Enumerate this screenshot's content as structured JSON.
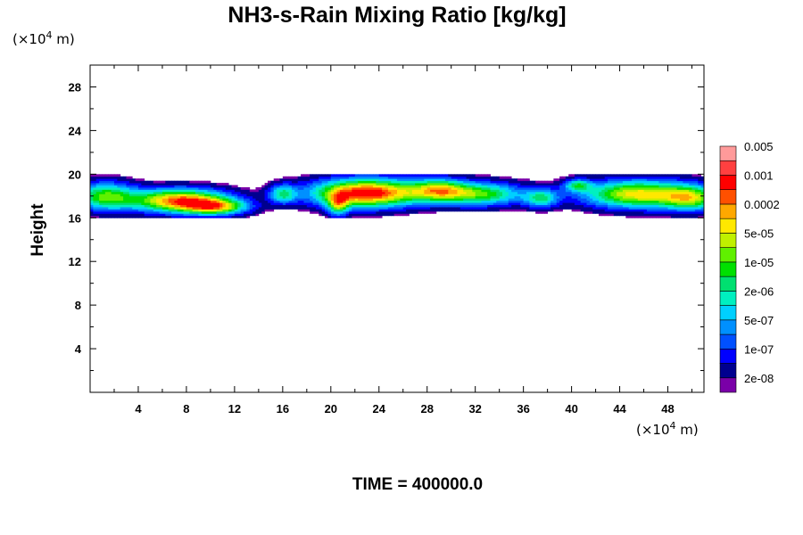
{
  "chart_data": {
    "type": "heatmap",
    "title": "NH3-s-Rain Mixing Ratio [kg/kg]",
    "x_unit": {
      "prefix": "(×10",
      "exp": "4",
      "suffix": " m)"
    },
    "y_unit": {
      "prefix": "(×10",
      "exp": "4",
      "suffix": " m)"
    },
    "ylabel": "Height",
    "xlim": [
      0,
      51
    ],
    "ylim": [
      0,
      30
    ],
    "x_ticks": [
      4,
      8,
      12,
      16,
      20,
      24,
      28,
      32,
      36,
      40,
      44,
      48
    ],
    "y_ticks": [
      4,
      8,
      12,
      16,
      20,
      24,
      28
    ],
    "footer": "TIME = 400000.0",
    "colorbar": {
      "colors": [
        "#7a00a8",
        "#00008f",
        "#0000ff",
        "#0050ff",
        "#0090ff",
        "#00d0ff",
        "#00f0c0",
        "#00e070",
        "#00e000",
        "#60f000",
        "#c0f000",
        "#ffe800",
        "#ffa800",
        "#ff5000",
        "#ff0000",
        "#ff4040",
        "#ff9a9a"
      ],
      "labels": [
        "2e-08",
        "1e-07",
        "5e-07",
        "2e-06",
        "1e-05",
        "5e-05",
        "0.0002",
        "0.001",
        "0.005"
      ]
    },
    "cloud_cells": [
      {
        "xc": 1.2,
        "yc": 18.0,
        "sx": 1.8,
        "sy": 0.9,
        "amp": 0.55
      },
      {
        "xc": 7.5,
        "yc": 17.6,
        "sx": 2.8,
        "sy": 0.75,
        "amp": 0.85
      },
      {
        "xc": 10.5,
        "yc": 17.0,
        "sx": 1.8,
        "sy": 0.5,
        "amp": 0.55
      },
      {
        "xc": 16.0,
        "yc": 18.2,
        "sx": 0.8,
        "sy": 0.6,
        "amp": 0.4
      },
      {
        "xc": 23.0,
        "yc": 18.3,
        "sx": 3.2,
        "sy": 0.9,
        "amp": 0.95
      },
      {
        "xc": 20.6,
        "yc": 17.2,
        "sx": 0.6,
        "sy": 0.7,
        "amp": 0.45
      },
      {
        "xc": 29.0,
        "yc": 18.6,
        "sx": 1.6,
        "sy": 0.7,
        "amp": 0.5
      },
      {
        "xc": 32.5,
        "yc": 18.2,
        "sx": 2.5,
        "sy": 0.75,
        "amp": 0.55
      },
      {
        "xc": 37.5,
        "yc": 17.8,
        "sx": 1.0,
        "sy": 0.6,
        "amp": 0.4
      },
      {
        "xc": 40.5,
        "yc": 19.0,
        "sx": 0.8,
        "sy": 0.4,
        "amp": 0.38
      },
      {
        "xc": 45.5,
        "yc": 18.2,
        "sx": 3.2,
        "sy": 0.9,
        "amp": 0.72
      },
      {
        "xc": 50.0,
        "yc": 17.8,
        "sx": 1.6,
        "sy": 0.8,
        "amp": 0.5
      }
    ]
  }
}
